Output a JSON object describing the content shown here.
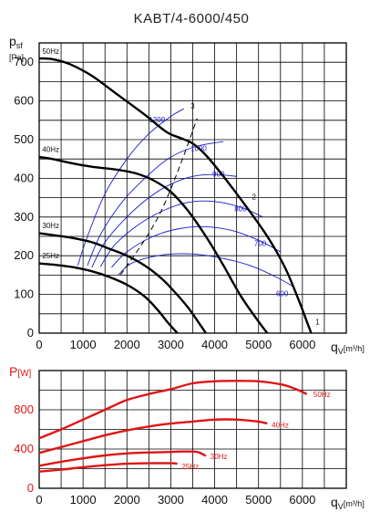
{
  "title": "KABT/4-6000/450",
  "chart_data": [
    {
      "type": "line",
      "name": "pressure",
      "ylabel_main": "p",
      "ylabel_sub": "sf",
      "ylabel_unit": "[Pa]",
      "xlabel_main": "q",
      "xlabel_sub": "V",
      "xlabel_unit": "[m³/h]",
      "xlim": [
        0,
        7000
      ],
      "ylim": [
        0,
        750
      ],
      "xticks": [
        0,
        1000,
        2000,
        3000,
        4000,
        5000,
        6000
      ],
      "yticks": [
        0,
        100,
        200,
        300,
        400,
        500,
        600,
        700
      ],
      "grid": true,
      "series": [
        {
          "name": "50Hz",
          "x": [
            0,
            300,
            700,
            1200,
            1800,
            2400,
            2900,
            3200,
            3500,
            3800,
            4200,
            4700,
            5200,
            5600,
            5900,
            6100,
            6200
          ],
          "y": [
            710,
            708,
            695,
            665,
            615,
            565,
            520,
            505,
            490,
            460,
            405,
            330,
            250,
            170,
            90,
            30,
            0
          ]
        },
        {
          "name": "40Hz",
          "x": [
            0,
            300,
            700,
            1200,
            1800,
            2200,
            2600,
            3000,
            3400,
            3800,
            4200,
            4600,
            5000,
            5200
          ],
          "y": [
            455,
            450,
            440,
            430,
            422,
            413,
            395,
            365,
            315,
            250,
            175,
            95,
            30,
            0
          ]
        },
        {
          "name": "30Hz",
          "x": [
            0,
            400,
            800,
            1200,
            1600,
            2000,
            2400,
            2800,
            3100,
            3400,
            3650,
            3800
          ],
          "y": [
            258,
            252,
            245,
            235,
            218,
            200,
            175,
            140,
            105,
            65,
            25,
            0
          ]
        },
        {
          "name": "25Hz",
          "x": [
            0,
            400,
            800,
            1200,
            1600,
            2000,
            2400,
            2700,
            2950,
            3150
          ],
          "y": [
            180,
            176,
            170,
            160,
            145,
            125,
            95,
            60,
            25,
            0
          ]
        }
      ],
      "curve_labels": [
        {
          "text": "1",
          "x": 6300,
          "y": 22
        },
        {
          "text": "2",
          "x": 4850,
          "y": 345
        },
        {
          "text": "3",
          "x": 3450,
          "y": 580
        }
      ],
      "system_curve": {
        "name": "3",
        "x": [
          1850,
          2400,
          2800,
          3200,
          3600
        ],
        "y": [
          150,
          240,
          320,
          430,
          555
        ]
      },
      "iso_curves": [
        {
          "label": "1200",
          "x": [
            880,
            1100,
            1500,
            2000,
            2500,
            3000,
            3300
          ],
          "y": [
            175,
            250,
            360,
            450,
            515,
            560,
            580
          ]
        },
        {
          "label": "1000",
          "x": [
            1100,
            1400,
            1900,
            2500,
            3000,
            3500,
            3900,
            4200
          ],
          "y": [
            175,
            255,
            340,
            410,
            455,
            480,
            490,
            495
          ]
        },
        {
          "label": "900",
          "x": [
            1200,
            1500,
            2000,
            2500,
            3000,
            3500,
            4000,
            4500
          ],
          "y": [
            170,
            235,
            300,
            350,
            385,
            405,
            410,
            405
          ]
        },
        {
          "label": "800",
          "x": [
            1400,
            1700,
            2200,
            2800,
            3400,
            4000,
            4600,
            5100
          ],
          "y": [
            172,
            225,
            275,
            315,
            338,
            340,
            325,
            300
          ]
        },
        {
          "label": "700",
          "x": [
            1650,
            2000,
            2600,
            3200,
            3800,
            4400,
            5000,
            5500
          ],
          "y": [
            170,
            210,
            250,
            270,
            275,
            265,
            240,
            210
          ]
        },
        {
          "label": "600",
          "x": [
            1800,
            2100,
            2700,
            3400,
            4100,
            4800,
            5400,
            5800
          ],
          "y": [
            150,
            180,
            200,
            205,
            195,
            175,
            145,
            120
          ]
        }
      ],
      "iso_labels": [
        {
          "text": "1200",
          "x": 2500,
          "y": 545
        },
        {
          "text": "1000",
          "x": 3450,
          "y": 470
        },
        {
          "text": "900",
          "x": 3950,
          "y": 405
        },
        {
          "text": "800",
          "x": 4450,
          "y": 315
        },
        {
          "text": "700",
          "x": 4900,
          "y": 225
        },
        {
          "text": "600",
          "x": 5400,
          "y": 95
        }
      ],
      "hz_labels": [
        {
          "text": "50Hz",
          "x": 70,
          "y": 722
        },
        {
          "text": "40Hz",
          "x": 70,
          "y": 468
        },
        {
          "text": "30Hz",
          "x": 70,
          "y": 271
        },
        {
          "text": "25Hz",
          "x": 70,
          "y": 193
        }
      ]
    },
    {
      "type": "line",
      "name": "power",
      "ylabel": "P",
      "ylabel_unit": "[W]",
      "xlabel_main": "q",
      "xlabel_sub": "V",
      "xlabel_unit": "[m³/h]",
      "xlim": [
        0,
        7000
      ],
      "ylim": [
        0,
        1200
      ],
      "xticks": [
        0,
        1000,
        2000,
        3000,
        4000,
        5000,
        6000
      ],
      "yticks": [
        0,
        400,
        800
      ],
      "grid": true,
      "series": [
        {
          "name": "50Hz",
          "x": [
            0,
            500,
            1000,
            1500,
            2000,
            2500,
            3000,
            3500,
            4000,
            4500,
            5000,
            5500,
            5800,
            6100
          ],
          "y": [
            510,
            600,
            700,
            800,
            900,
            960,
            1010,
            1070,
            1090,
            1095,
            1090,
            1060,
            1020,
            960
          ]
        },
        {
          "name": "40Hz",
          "x": [
            0,
            500,
            1000,
            1500,
            2000,
            2500,
            3000,
            3500,
            4000,
            4500,
            5000,
            5200
          ],
          "y": [
            360,
            420,
            480,
            540,
            590,
            630,
            660,
            680,
            700,
            700,
            680,
            660
          ]
        },
        {
          "name": "30Hz",
          "x": [
            0,
            500,
            1000,
            1500,
            2000,
            2500,
            3000,
            3300,
            3600,
            3800
          ],
          "y": [
            230,
            270,
            305,
            335,
            355,
            365,
            370,
            375,
            370,
            330
          ]
        },
        {
          "name": "25Hz",
          "x": [
            0,
            500,
            1000,
            1500,
            2000,
            2500,
            3000,
            3150
          ],
          "y": [
            170,
            190,
            215,
            235,
            250,
            255,
            255,
            250
          ]
        }
      ],
      "hz_labels": [
        {
          "text": "50Hz",
          "x": 6250,
          "y": 930
        },
        {
          "text": "40Hz",
          "x": 5300,
          "y": 620
        },
        {
          "text": "30Hz",
          "x": 3900,
          "y": 300
        },
        {
          "text": "25Hz",
          "x": 3250,
          "y": 195
        }
      ]
    }
  ]
}
